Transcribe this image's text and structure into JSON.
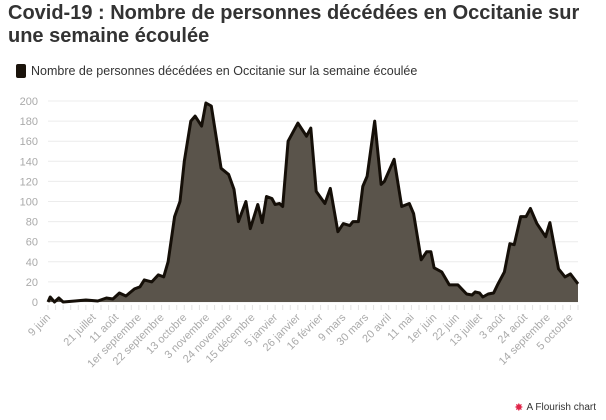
{
  "title": "Covid-19 : Nombre de personnes décédées en Occitanie sur une semaine écoulée",
  "footer": "A Flourish chart",
  "colors": {
    "fill": "#5a544b",
    "line": "#150f08",
    "grid": "#ececec",
    "tick": "#aaaaaa"
  },
  "chart_data": {
    "type": "area",
    "title": "Covid-19 : Nombre de personnes décédées en Occitanie sur une semaine écoulée",
    "legend": [
      "Nombre de personnes décédées en Occitanie sur la semaine écoulée"
    ],
    "legend_position": "top-left",
    "xlabel": "",
    "ylabel": "",
    "ylim": [
      0,
      200
    ],
    "yticks": [
      0,
      20,
      40,
      60,
      80,
      100,
      120,
      140,
      160,
      180,
      200
    ],
    "xlim_days": [
      0,
      490
    ],
    "xticks": [
      {
        "day": 0,
        "label": "9 juin"
      },
      {
        "day": 42,
        "label": "21 juillet"
      },
      {
        "day": 63,
        "label": "11 août"
      },
      {
        "day": 84,
        "label": "1er septembre"
      },
      {
        "day": 105,
        "label": "22 septembre"
      },
      {
        "day": 126,
        "label": "13 octobre"
      },
      {
        "day": 147,
        "label": "3 novembre"
      },
      {
        "day": 168,
        "label": "24 novembre"
      },
      {
        "day": 189,
        "label": "15 décembre"
      },
      {
        "day": 210,
        "label": "5 janvier"
      },
      {
        "day": 231,
        "label": "26 janvier"
      },
      {
        "day": 252,
        "label": "16 février"
      },
      {
        "day": 273,
        "label": "9 mars"
      },
      {
        "day": 294,
        "label": "30 mars"
      },
      {
        "day": 315,
        "label": "20 avril"
      },
      {
        "day": 336,
        "label": "11 mai"
      },
      {
        "day": 357,
        "label": "1er juin"
      },
      {
        "day": 378,
        "label": "22 juin"
      },
      {
        "day": 399,
        "label": "13 juillet"
      },
      {
        "day": 420,
        "label": "3 août"
      },
      {
        "day": 441,
        "label": "24 août"
      },
      {
        "day": 462,
        "label": "14 septembre"
      },
      {
        "day": 483,
        "label": "5 octobre"
      }
    ],
    "x": [
      0,
      2,
      6,
      10,
      14,
      25,
      35,
      46,
      54,
      60,
      66,
      72,
      80,
      85,
      89,
      96,
      102,
      107,
      111,
      117,
      122,
      126,
      132,
      136,
      142,
      146,
      151,
      160,
      167,
      172,
      176,
      183,
      187,
      194,
      198,
      202,
      207,
      210,
      214,
      217,
      222,
      227,
      231,
      239,
      243,
      248,
      256,
      261,
      268,
      273,
      279,
      282,
      287,
      291,
      295,
      302,
      308,
      311,
      320,
      327,
      334,
      338,
      345,
      350,
      354,
      357,
      364,
      371,
      379,
      387,
      392,
      395,
      399,
      402,
      407,
      412,
      416,
      422,
      427,
      431,
      437,
      442,
      446,
      452,
      460,
      464,
      472,
      478,
      483,
      490
    ],
    "values": [
      0,
      5,
      0,
      4,
      0,
      1,
      2,
      1,
      4,
      3,
      9,
      6,
      13,
      15,
      22,
      20,
      27,
      25,
      40,
      85,
      100,
      140,
      180,
      185,
      175,
      198,
      195,
      133,
      127,
      112,
      80,
      100,
      73,
      97,
      79,
      105,
      103,
      97,
      98,
      95,
      160,
      170,
      178,
      165,
      173,
      110,
      98,
      113,
      70,
      78,
      76,
      80,
      80,
      115,
      125,
      180,
      117,
      120,
      142,
      95,
      98,
      88,
      42,
      50,
      50,
      34,
      30,
      17,
      17,
      8,
      7,
      10,
      9,
      5,
      8,
      9,
      18,
      30,
      58,
      57,
      85,
      85,
      93,
      78,
      65,
      79,
      33,
      25,
      28,
      18
    ]
  }
}
